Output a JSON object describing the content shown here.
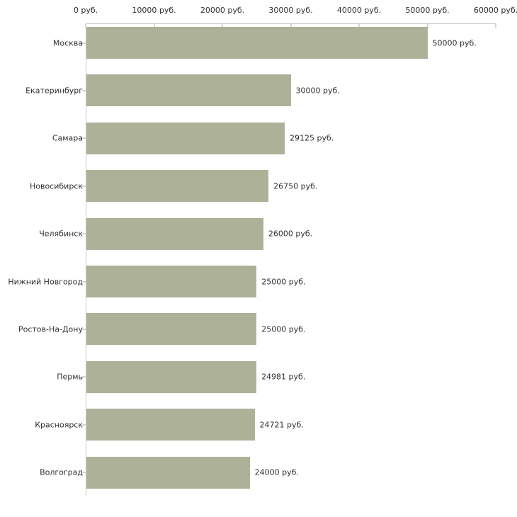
{
  "chart_data": {
    "type": "bar",
    "orientation": "horizontal",
    "title": "",
    "xlabel": "",
    "ylabel": "",
    "categories": [
      "Москва",
      "Екатеринбург",
      "Самара",
      "Новосибирск",
      "Челябинск",
      "Нижний Новгород",
      "Ростов-На-Дону",
      "Пермь",
      "Красноярск",
      "Волгоград"
    ],
    "values": [
      50000,
      30000,
      29125,
      26750,
      26000,
      25000,
      25000,
      24981,
      24721,
      24000
    ],
    "value_labels": [
      "50000 руб.",
      "30000 руб.",
      "29125 руб.",
      "26750 руб.",
      "26000 руб.",
      "25000 руб.",
      "25000 руб.",
      "24981 руб.",
      "24721 руб.",
      "24000 руб."
    ],
    "x_axis": {
      "min": 0,
      "max": 60000,
      "tick_values": [
        0,
        10000,
        20000,
        30000,
        40000,
        50000,
        60000
      ],
      "tick_labels": [
        "0 руб.",
        "10000 руб.",
        "20000 руб.",
        "30000 руб.",
        "40000 руб.",
        "50000 руб.",
        "60000 руб."
      ],
      "position": "top"
    },
    "grid": false,
    "legend": false,
    "colors": {
      "bar_fill": "#adb197",
      "axis_line": "#c9c9c9",
      "tick_mark": "#d6d7c1",
      "text": "#2e2e2e",
      "background": "#ffffff"
    }
  }
}
